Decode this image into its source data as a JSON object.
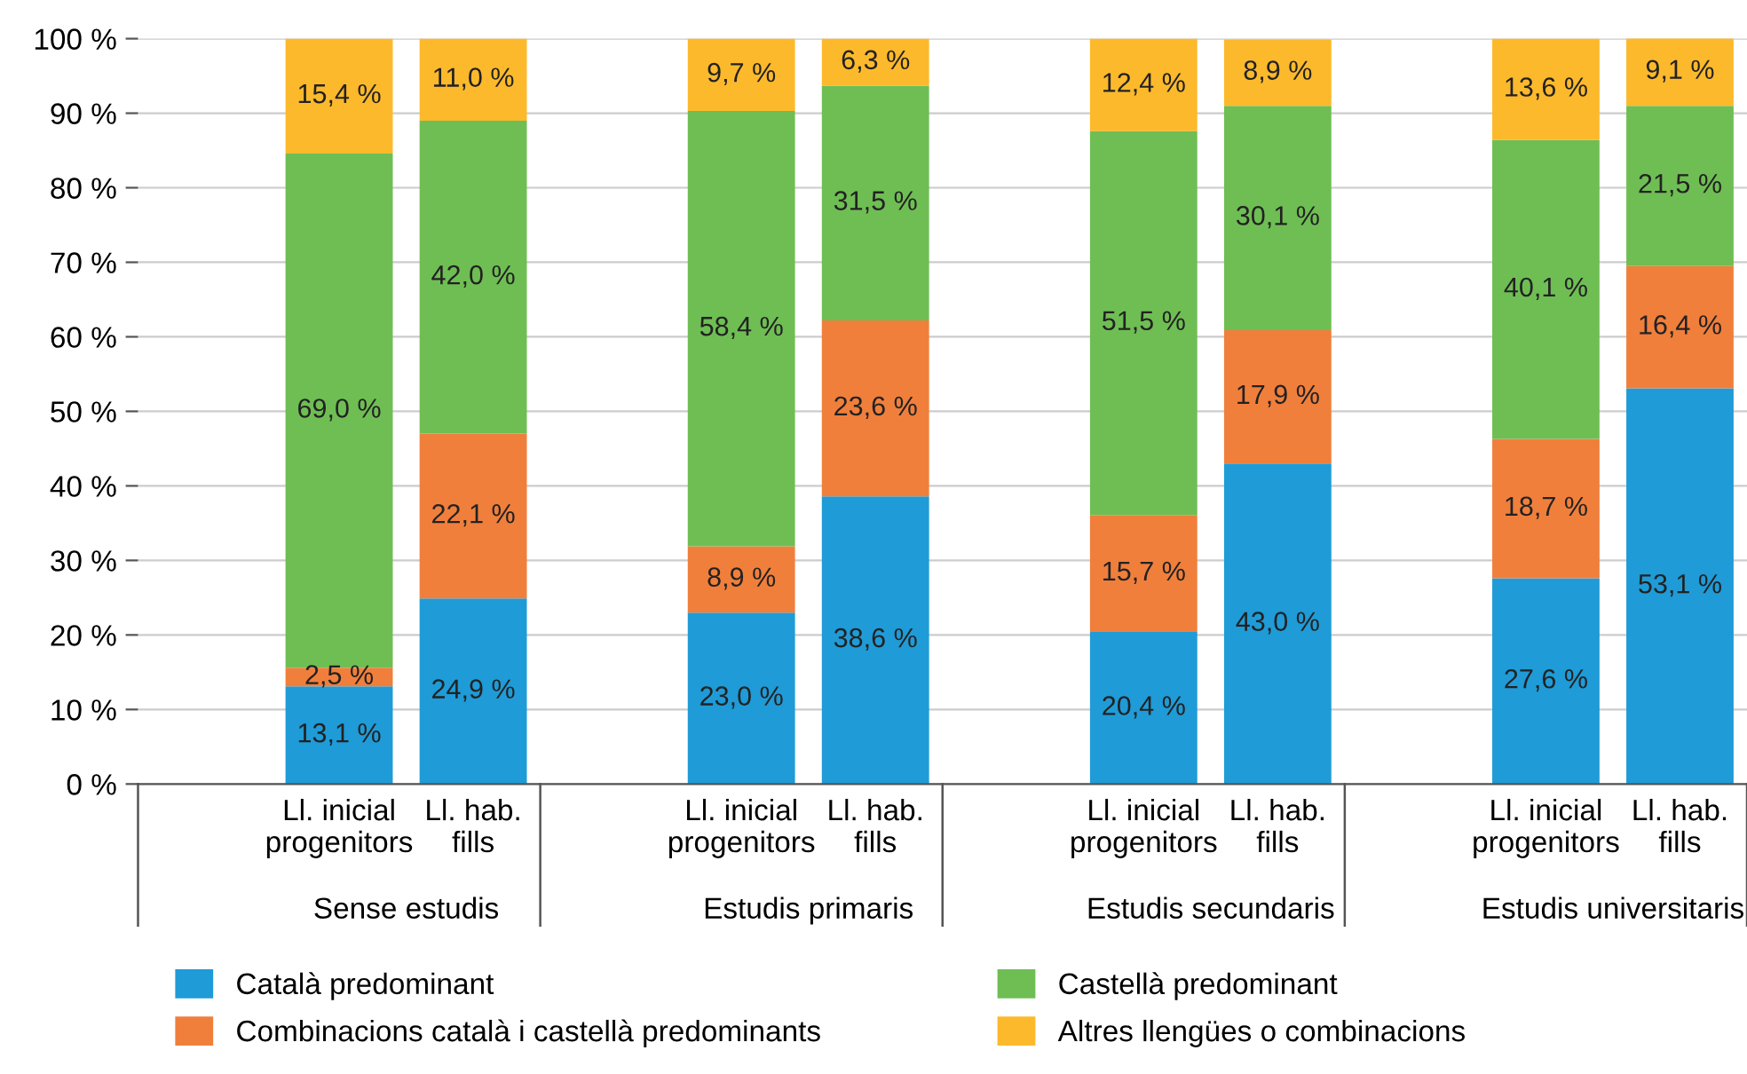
{
  "chart_data": {
    "type": "bar",
    "stacked": true,
    "categories": [
      null,
      "Ll. inicial\nprogenitors",
      "Ll. hab.\nfills",
      null,
      "Ll. inicial\nprogenitors",
      "Ll. hab.\nfills",
      null,
      "Ll. inicial\nprogenitors",
      "Ll. hab.\nfills",
      null,
      "Ll. inicial\nprogenitors",
      "Ll. hab.\nfills"
    ],
    "annotations": [
      "Sense estudis",
      "Estudis primaris",
      "Estudis secundaris",
      "Estudis universitaris"
    ],
    "series": [
      {
        "name": "Català predominant",
        "color": "#1f9bd7",
        "values": [
          null,
          13.1,
          24.9,
          null,
          23.0,
          38.6,
          null,
          20.4,
          43.0,
          null,
          27.6,
          53.1
        ],
        "value_labels": [
          null,
          "13,1 %",
          "24,9 %",
          null,
          "23,0 %",
          "38,6 %",
          null,
          "20,4 %",
          "43,0 %",
          null,
          "27,6 %",
          "53,1 %"
        ]
      },
      {
        "name": "Combinacions català i castellà predominants",
        "color": "#f07f3c",
        "values": [
          null,
          2.5,
          22.1,
          null,
          8.9,
          23.6,
          null,
          15.7,
          17.9,
          null,
          18.7,
          16.4
        ],
        "value_labels": [
          null,
          "2,5 %",
          "22,1 %",
          null,
          "8,9 %",
          "23,6 %",
          null,
          "15,7 %",
          "17,9 %",
          null,
          "18,7 %",
          "16,4 %"
        ]
      },
      {
        "name": "Castellà predominant",
        "color": "#6fbe54",
        "values": [
          null,
          69.0,
          42.0,
          null,
          58.4,
          31.5,
          null,
          51.5,
          30.1,
          null,
          40.1,
          21.5
        ],
        "value_labels": [
          null,
          "69,0 %",
          "42,0 %",
          null,
          "58,4 %",
          "31,5 %",
          null,
          "51,5 %",
          "30,1 %",
          null,
          "40,1 %",
          "21,5 %"
        ]
      },
      {
        "name": "Altres llengües o combinacions",
        "color": "#fdb92c",
        "values": [
          null,
          15.4,
          11.0,
          null,
          9.7,
          6.3,
          null,
          12.4,
          8.9,
          null,
          13.6,
          9.1
        ],
        "value_labels": [
          null,
          "15,4 %",
          "11,0 %",
          null,
          "9,7 %",
          "6,3 %",
          null,
          "12,4 %",
          "8,9 %",
          null,
          "13,6 %",
          "9,1 %"
        ]
      }
    ],
    "ylim": [
      0,
      100
    ],
    "yticks": [
      {
        "value": 0,
        "label": "0 %"
      },
      {
        "value": 10,
        "label": "10 %"
      },
      {
        "value": 20,
        "label": "20 %"
      },
      {
        "value": 30,
        "label": "30 %"
      },
      {
        "value": 40,
        "label": "40 %"
      },
      {
        "value": 50,
        "label": "50 %"
      },
      {
        "value": 60,
        "label": "60 %"
      },
      {
        "value": 70,
        "label": "70 %"
      },
      {
        "value": 80,
        "label": "80 %"
      },
      {
        "value": 90,
        "label": "90 %"
      },
      {
        "value": 100,
        "label": "100 %"
      }
    ],
    "grid": "y",
    "legend": "bottom"
  }
}
